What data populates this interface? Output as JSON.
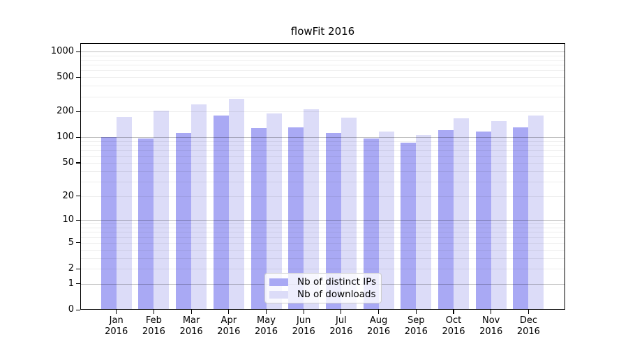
{
  "title": "flowFit 2016",
  "chart_data": {
    "type": "bar",
    "title": "flowFit 2016",
    "xlabel": "",
    "ylabel": "",
    "y_scale": "symlog",
    "y_ticks": [
      0,
      1,
      2,
      5,
      10,
      20,
      50,
      100,
      200,
      500,
      1000
    ],
    "ylim": [
      0,
      1250
    ],
    "grid": true,
    "legend_position": "lower center",
    "categories": [
      "Jan 2016",
      "Feb 2016",
      "Mar 2016",
      "Apr 2016",
      "May 2016",
      "Jun 2016",
      "Jul 2016",
      "Aug 2016",
      "Sep 2016",
      "Oct 2016",
      "Nov 2016",
      "Dec 2016"
    ],
    "series": [
      {
        "name": "Nb of distinct IPs",
        "color": "#a9a9f4",
        "values": [
          100,
          97,
          113,
          179,
          129,
          131,
          112,
          96,
          86,
          121,
          116,
          130
        ]
      },
      {
        "name": "Nb of downloads",
        "color": "#dcdcf8",
        "values": [
          172,
          206,
          240,
          283,
          189,
          214,
          169,
          116,
          106,
          165,
          154,
          180
        ]
      }
    ]
  },
  "colors": {
    "background": "#ffffff",
    "spine": "#000000",
    "major_grid": "rgba(0,0,0,0.25)",
    "minor_grid": "rgba(0,0,0,0.07)"
  }
}
